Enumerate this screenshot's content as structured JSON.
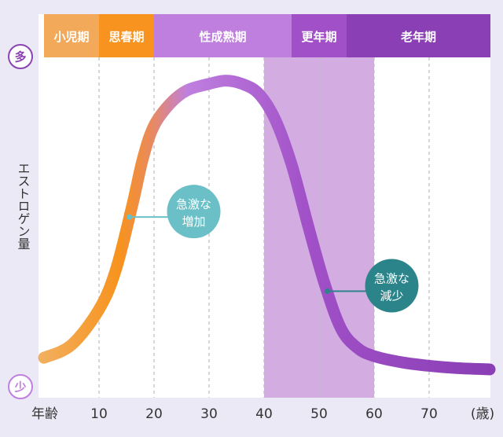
{
  "chart_data": {
    "type": "line",
    "ylabel": "エストロゲン量",
    "y_high_label": "多",
    "y_low_label": "少",
    "x_start_label": "年齢",
    "x_unit_label": "(歳)",
    "x_ticks": [
      "10",
      "20",
      "30",
      "40",
      "50",
      "60",
      "70"
    ],
    "xlim": [
      0,
      82
    ],
    "ylim": [
      0,
      100
    ],
    "grid": true,
    "stages": [
      {
        "label": "小児期",
        "from": 0,
        "to": 10,
        "color": "#f2a95a"
      },
      {
        "label": "思春期",
        "from": 10,
        "to": 20,
        "color": "#f7931e"
      },
      {
        "label": "性成熟期",
        "from": 20,
        "to": 45,
        "color": "#bf7fdf"
      },
      {
        "label": "更年期",
        "from": 45,
        "to": 55,
        "color": "#a150c7"
      },
      {
        "label": "老年期",
        "from": 55,
        "to": 82,
        "color": "#8a3fb5"
      }
    ],
    "highlight_range": [
      40,
      60
    ],
    "highlight_color": "#d3ade2",
    "series": [
      {
        "x": [
          0,
          5,
          10,
          13,
          16,
          18,
          20,
          23,
          26,
          30,
          33,
          36,
          39,
          42,
          45,
          48,
          51,
          54,
          57,
          60,
          65,
          70,
          75,
          81
        ],
        "y": [
          8,
          12,
          23,
          35,
          55,
          70,
          80,
          87,
          91,
          93,
          94,
          93,
          90,
          82,
          68,
          49,
          31,
          17,
          11,
          8.5,
          6.6,
          5.5,
          4.8,
          4.4
        ]
      }
    ],
    "line_colors": [
      "#f2b060",
      "#f7931e",
      "#e98a5e",
      "#bf7fdf",
      "#a150c7",
      "#8a3fb5"
    ],
    "annotations": [
      {
        "lines": [
          "急激な",
          "増加"
        ],
        "age": 15.5,
        "color": "#6bbfc6"
      },
      {
        "lines": [
          "急激な",
          "減少"
        ],
        "age": 51.5,
        "color": "#2a8489"
      }
    ]
  }
}
